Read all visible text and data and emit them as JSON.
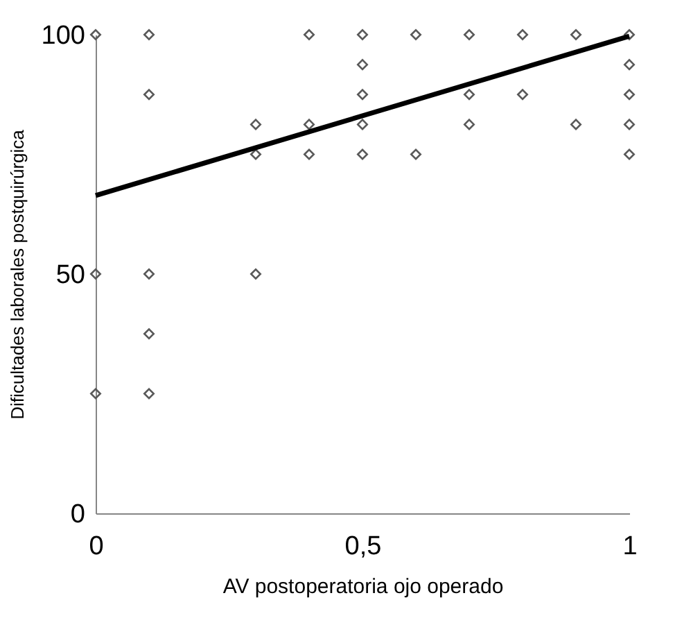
{
  "chart_data": {
    "type": "scatter",
    "xlabel": "AV postoperatoria ojo operado",
    "ylabel": "Dificultades laborales postquirúrgica",
    "xlim": [
      0,
      1
    ],
    "ylim": [
      0,
      100
    ],
    "xticks": [
      0,
      {
        "value": 0.5,
        "label": "0,5"
      },
      1
    ],
    "yticks": [
      0,
      50,
      100
    ],
    "grid": false,
    "marker": "diamond",
    "series": [
      {
        "color": "#595959",
        "x": [
          0,
          0,
          0,
          0.1,
          0.1,
          0.1,
          0.1,
          0.1,
          0.3,
          0.3,
          0.3,
          0.4,
          0.4,
          0.4,
          0.5,
          0.5,
          0.5,
          0.5,
          0.5,
          0.6,
          0.6,
          0.7,
          0.7,
          0.7,
          0.8,
          0.8,
          0.9,
          0.9,
          1,
          1,
          1,
          1,
          1
        ],
        "values": [
          100,
          50,
          25,
          100,
          87.5,
          50,
          37.5,
          25,
          81.25,
          75,
          50,
          100,
          81.25,
          75,
          100,
          93.75,
          87.5,
          81.25,
          75,
          100,
          75,
          100,
          87.5,
          81.25,
          100,
          87.5,
          100,
          81.25,
          100,
          93.75,
          87.5,
          81.25,
          75
        ]
      },
      {
        "type": "line",
        "marker": "none",
        "color": "#000000",
        "x": [
          0,
          1
        ],
        "values": [
          66.4,
          99.7
        ]
      }
    ]
  }
}
